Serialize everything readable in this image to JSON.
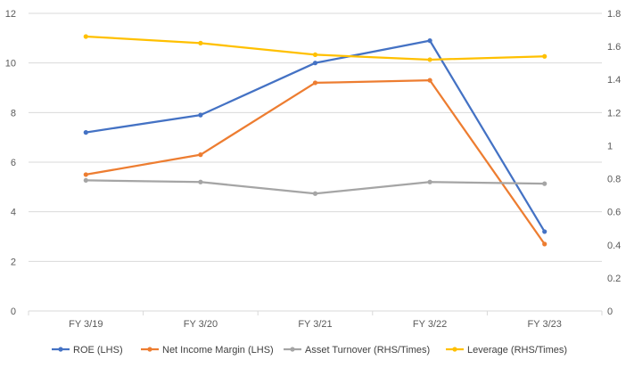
{
  "chart_data": {
    "type": "line",
    "categories": [
      "FY 3/19",
      "FY 3/20",
      "FY 3/21",
      "FY 3/22",
      "FY 3/23"
    ],
    "left_axis": {
      "ylim": [
        0,
        12
      ],
      "ticks": [
        "0",
        "2",
        "4",
        "6",
        "8",
        "10",
        "12"
      ]
    },
    "right_axis": {
      "ylim": [
        0,
        1.8
      ],
      "ticks": [
        "0",
        "0.2",
        "0.4",
        "0.6",
        "0.8",
        "1",
        "1.2",
        "1.4",
        "1.6",
        "1.8"
      ]
    },
    "grid": "horizontal",
    "legend_position": "bottom",
    "series": [
      {
        "name": "ROE (LHS)",
        "axis": "left",
        "color": "#4472C4",
        "values": [
          7.2,
          7.9,
          10.0,
          10.9,
          3.2
        ]
      },
      {
        "name": "Net Income Margin (LHS)",
        "axis": "left",
        "color": "#ED7D31",
        "values": [
          5.5,
          6.3,
          9.2,
          9.3,
          2.7
        ]
      },
      {
        "name": "Asset Turnover (RHS/Times)",
        "axis": "right",
        "color": "#A5A5A5",
        "values": [
          0.79,
          0.78,
          0.71,
          0.78,
          0.77
        ]
      },
      {
        "name": "Leverage (RHS/Times)",
        "axis": "right",
        "color": "#FFC000",
        "values": [
          1.66,
          1.62,
          1.55,
          1.52,
          1.54
        ]
      }
    ]
  }
}
